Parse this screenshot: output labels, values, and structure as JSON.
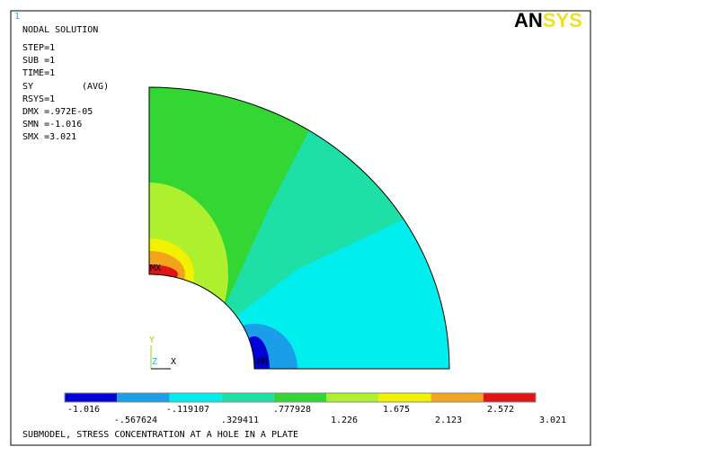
{
  "window_number": "1",
  "logo": {
    "first": "AN",
    "second": "SYS"
  },
  "info": [
    "NODAL SOLUTION",
    "STEP=1",
    "SUB =1",
    "TIME=1",
    "SY",
    "(AVG)",
    "RSYS=1",
    "DMX =.972E-05",
    "SMN =-1.016",
    "SMX =3.021"
  ],
  "markers": {
    "max": "MX",
    "min": "MN"
  },
  "triad": {
    "y": "Y",
    "z": "Z",
    "x": "X"
  },
  "legend": {
    "colors": [
      "#0000d8",
      "#1a9ee8",
      "#00eeee",
      "#1ee0a6",
      "#33d633",
      "#aef02e",
      "#f2f200",
      "#f2a41c",
      "#e01414"
    ],
    "labels": [
      "-1.016",
      "-.567624",
      "-.119107",
      ".329411",
      ".777928",
      "1.226",
      "1.675",
      "2.123",
      "2.572",
      "3.021"
    ]
  },
  "footer": "SUBMODEL, STRESS CONCENTRATION AT A HOLE IN A PLATE"
}
